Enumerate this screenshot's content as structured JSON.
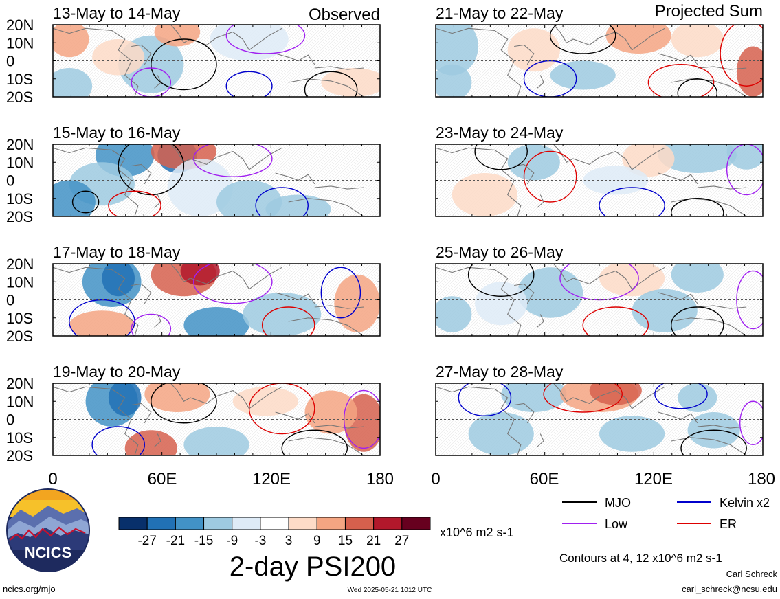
{
  "column_headers": {
    "left": "Observed",
    "right": "Projected Sum"
  },
  "panels_left": [
    {
      "label": "13-May to 14-May"
    },
    {
      "label": "15-May to 16-May"
    },
    {
      "label": "17-May to 18-May"
    },
    {
      "label": "19-May to 20-May"
    }
  ],
  "panels_right": [
    {
      "label": "21-May to 22-May"
    },
    {
      "label": "23-May to 24-May"
    },
    {
      "label": "25-May to 26-May"
    },
    {
      "label": "27-May to 28-May"
    }
  ],
  "lat_labels": [
    "20N",
    "10N",
    "0",
    "10S",
    "20S"
  ],
  "lon_labels": [
    "0",
    "60E",
    "120E",
    "180"
  ],
  "legend": {
    "items": [
      {
        "label": "MJO",
        "color": "#000000"
      },
      {
        "label": "Kelvin x2",
        "color": "#0000cc"
      },
      {
        "label": "Low",
        "color": "#a020f0"
      },
      {
        "label": "ER",
        "color": "#dd0000"
      }
    ],
    "contours_note": "Contours at 4, 12 x10^6 m2 s-1"
  },
  "colorbar": {
    "colors": [
      "#08306b",
      "#2171b5",
      "#4292c6",
      "#9ecae1",
      "#deebf7",
      "#ffffff",
      "#fddbc7",
      "#f4a582",
      "#d6604d",
      "#b2182b",
      "#67001f"
    ],
    "ticks": [
      "-27",
      "-21",
      "-15",
      "-9",
      "-3",
      "3",
      "9",
      "15",
      "21",
      "27"
    ],
    "units": "x10^6 m2 s-1"
  },
  "title": "2-day PSI200",
  "logo_text": "NCICS",
  "footer": {
    "url": "ncics.org/mjo",
    "timestamp": "Wed 2025-05-21 1012 UTC",
    "author": "Carl Schreck",
    "email": "carl_schreck@ncsu.edu"
  }
}
